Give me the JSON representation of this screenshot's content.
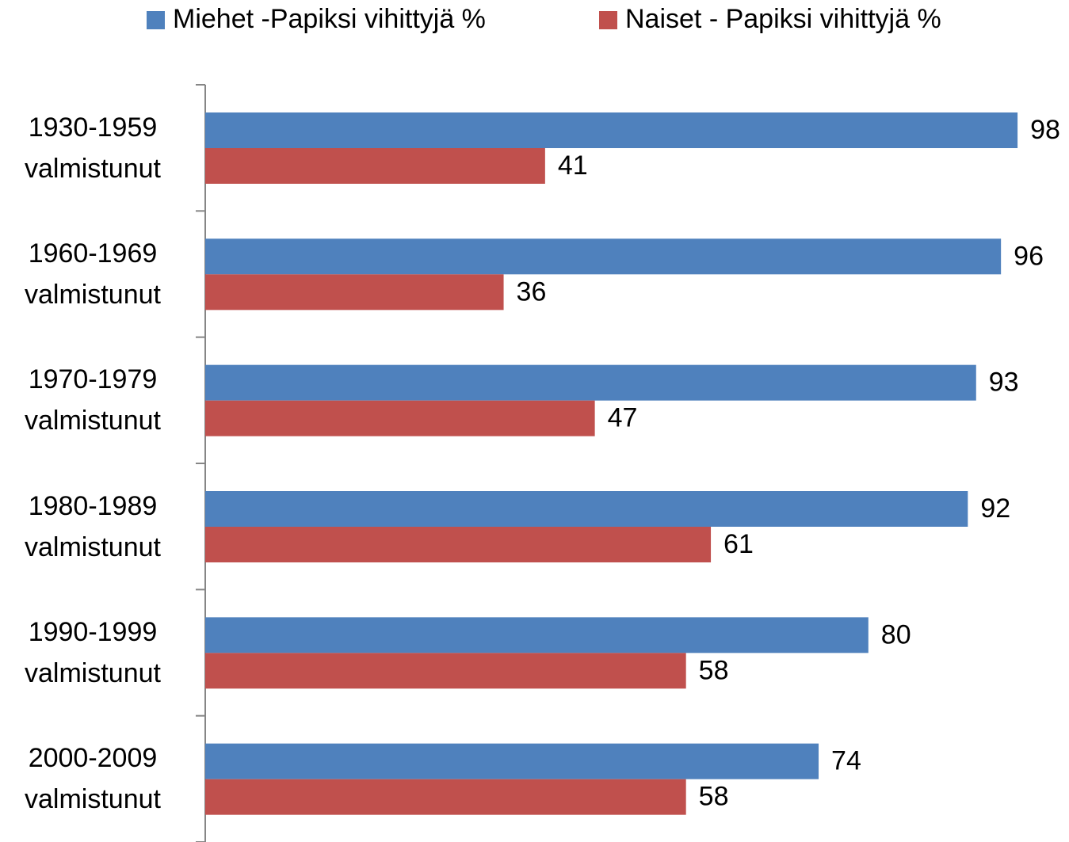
{
  "chart_data": {
    "type": "bar",
    "orientation": "horizontal",
    "categories": [
      "1930-1959 valmistunut",
      "1960-1969 valmistunut",
      "1970-1979 valmistunut",
      "1980-1989 valmistunut",
      "1990-1999 valmistunut",
      "2000-2009 valmistunut"
    ],
    "series": [
      {
        "name": "Miehet -Papiksi vihittyjä %",
        "color": "#4f81bd",
        "values": [
          98,
          96,
          93,
          92,
          80,
          74
        ]
      },
      {
        "name": "Naiset - Papiksi vihittyjä %",
        "color": "#c0504d",
        "values": [
          41,
          36,
          47,
          61,
          58,
          58
        ]
      }
    ],
    "xlim": [
      0,
      100
    ],
    "legend": "top"
  }
}
